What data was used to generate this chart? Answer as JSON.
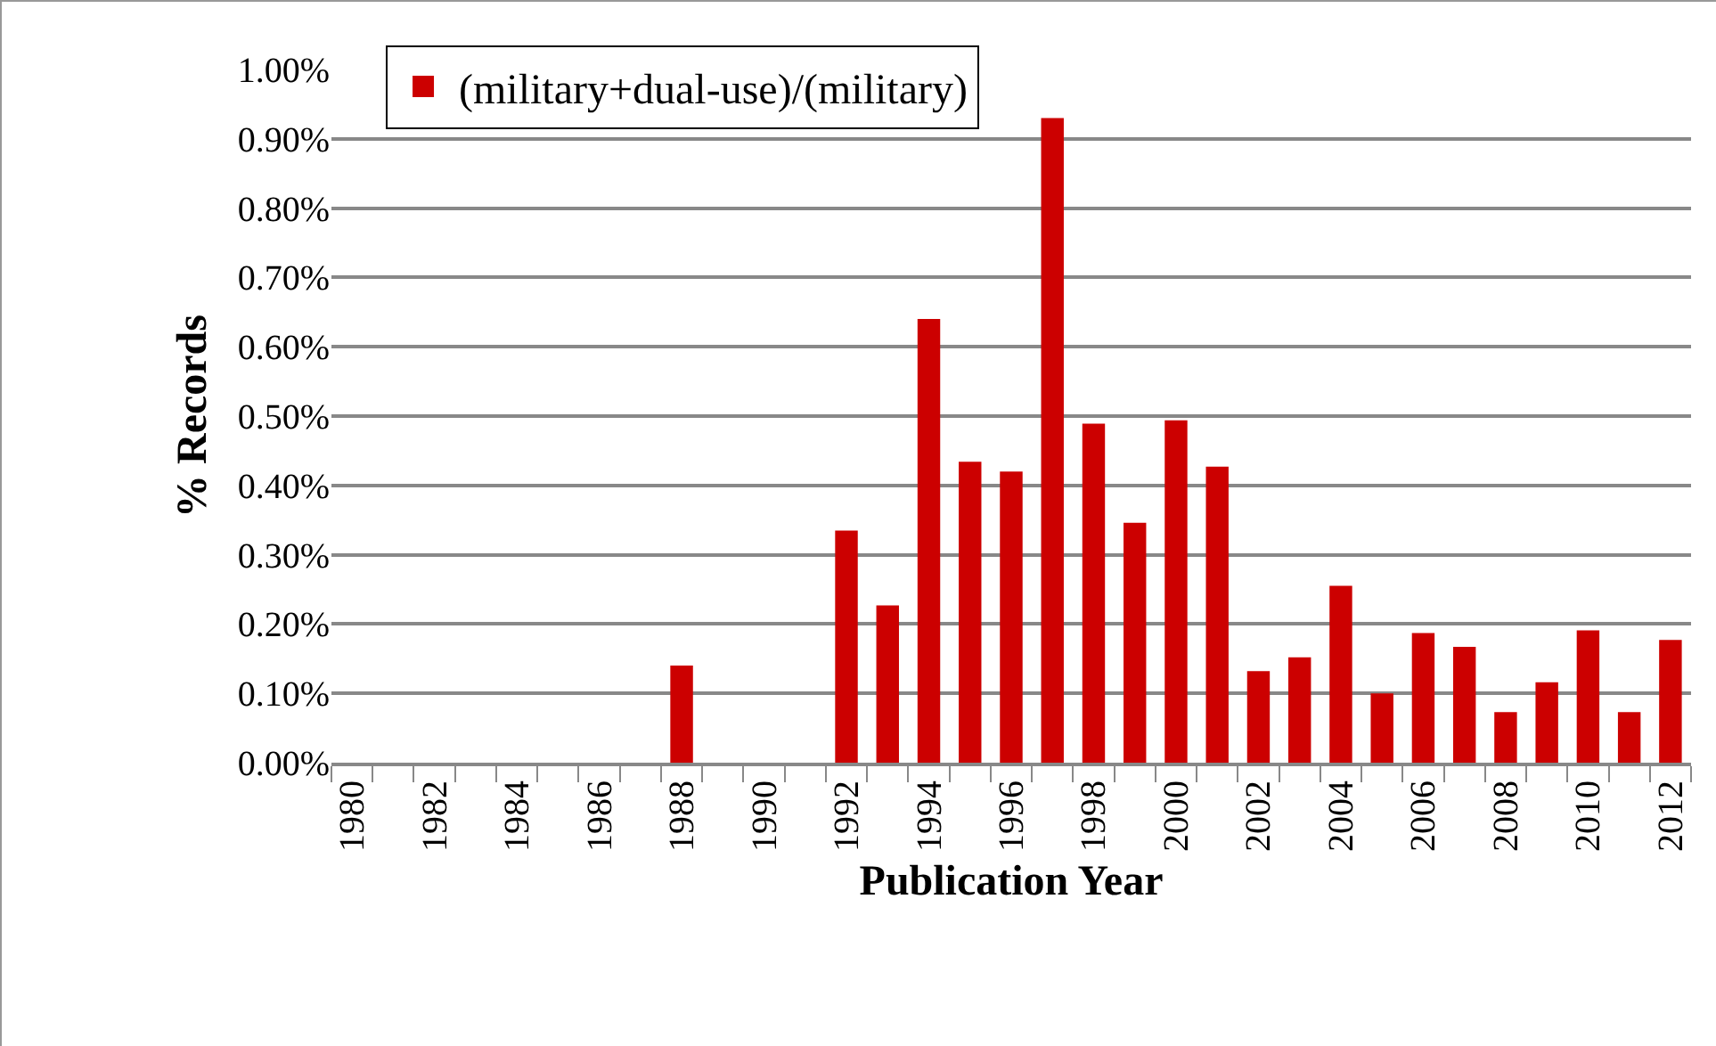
{
  "chart_data": {
    "type": "bar",
    "xlabel": "Publication Year",
    "ylabel": "% Records",
    "categories": [
      "1980",
      null,
      "1982",
      null,
      "1984",
      null,
      "1986",
      null,
      "1988",
      null,
      "1990",
      null,
      "1992",
      null,
      "1994",
      null,
      "1996",
      null,
      "1998",
      null,
      "2000",
      null,
      "2002",
      null,
      "2004",
      null,
      "2006",
      null,
      "2008",
      null,
      "2010",
      null,
      "2012"
    ],
    "series": [
      {
        "name": "(military+dual-use)/(military)",
        "color": "#cc0000",
        "values": [
          0,
          0,
          0,
          0,
          0,
          0,
          0,
          0,
          0.14,
          0,
          0,
          0,
          0.335,
          0.227,
          0.64,
          0.434,
          0.42,
          0.93,
          0.489,
          0.346,
          0.494,
          0.427,
          0.132,
          0.152,
          0.255,
          0.1,
          0.187,
          0.167,
          0.073,
          0.116,
          0.191,
          0.073,
          0.177
        ]
      }
    ],
    "ylim": [
      0,
      1
    ],
    "yticks": [
      {
        "value": 0,
        "label": "0.00%"
      },
      {
        "value": 0.1,
        "label": "0.10%"
      },
      {
        "value": 0.2,
        "label": "0.20%"
      },
      {
        "value": 0.3,
        "label": "0.30%"
      },
      {
        "value": 0.4,
        "label": "0.40%"
      },
      {
        "value": 0.5,
        "label": "0.50%"
      },
      {
        "value": 0.6,
        "label": "0.60%"
      },
      {
        "value": 0.7,
        "label": "0.70%"
      },
      {
        "value": 0.8,
        "label": "0.80%"
      },
      {
        "value": 0.9,
        "label": "0.90%"
      },
      {
        "value": 1,
        "label": "1.00%"
      }
    ],
    "grid": "y",
    "legend": "top left"
  }
}
